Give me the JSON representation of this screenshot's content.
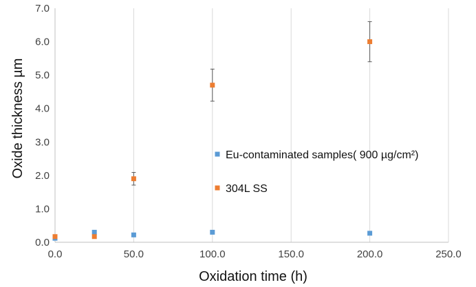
{
  "chart_data": {
    "type": "scatter",
    "title": "",
    "xlabel": "Oxidation time (h)",
    "ylabel": "Oxide thickness µm",
    "xlim": [
      0,
      250
    ],
    "ylim": [
      0,
      7
    ],
    "x_ticks": [
      "0.0",
      "50.0",
      "100.0",
      "150.0",
      "200.0",
      "250.0"
    ],
    "y_ticks": [
      "0.0",
      "1.0",
      "2.0",
      "3.0",
      "4.0",
      "5.0",
      "6.0",
      "7.0"
    ],
    "grid": "vertical",
    "legend_position": "inside-right",
    "series": [
      {
        "name": "Eu-contaminated samples( 900 µg/cm²)",
        "color": "#5B9BD5",
        "marker": "square",
        "points": [
          {
            "x": 0,
            "y": 0.12
          },
          {
            "x": 25,
            "y": 0.3
          },
          {
            "x": 50,
            "y": 0.22
          },
          {
            "x": 100,
            "y": 0.3
          },
          {
            "x": 200,
            "y": 0.27
          }
        ]
      },
      {
        "name": "304L SS",
        "color": "#ED7D31",
        "marker": "square",
        "points": [
          {
            "x": 0,
            "y": 0.17
          },
          {
            "x": 25,
            "y": 0.17
          },
          {
            "x": 50,
            "y": 1.9,
            "err": 0.19
          },
          {
            "x": 100,
            "y": 4.7,
            "err": 0.48
          },
          {
            "x": 200,
            "y": 6.0,
            "err": 0.6
          }
        ]
      }
    ]
  }
}
